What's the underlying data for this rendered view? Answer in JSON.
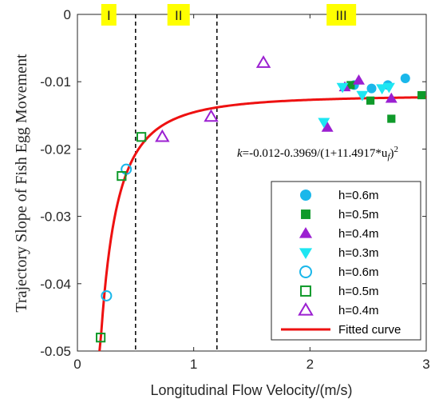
{
  "chart_data": {
    "type": "scatter",
    "xlabel": "Longitudinal Flow Velocity/(m/s)",
    "ylabel": "Trajectory Slope of Fish Egg Movement",
    "xlim": [
      0,
      3
    ],
    "ylim": [
      -0.05,
      0
    ],
    "xticks": [
      "0",
      "1",
      "2",
      "3"
    ],
    "yticks": [
      "0",
      "-0.01",
      "-0.02",
      "-0.03",
      "-0.04",
      "-0.05"
    ],
    "grid": false,
    "legend_position": "bottom-right",
    "regions": [
      {
        "label": "I",
        "x_from": 0,
        "x_to": 0.5
      },
      {
        "label": "II",
        "x_from": 0.5,
        "x_to": 1.2
      },
      {
        "label": "III",
        "x_from": 1.2,
        "x_to": 3
      }
    ],
    "divider_lines_x": [
      0.5,
      1.2
    ],
    "annotation": {
      "text_main": "k=-0.012-0.3969/(1+11.4917*u",
      "text_sub": "f",
      "text_tail": ")",
      "text_sup": "2"
    },
    "series": [
      {
        "name": "h=0.6m",
        "marker": "circle-filled",
        "color": "#1ab7ea",
        "points": [
          [
            2.38,
            -0.0105
          ],
          [
            2.53,
            -0.011
          ],
          [
            2.67,
            -0.0105
          ],
          [
            2.82,
            -0.0095
          ]
        ]
      },
      {
        "name": "h=0.5m",
        "marker": "square-filled",
        "color": "#0f9a2a",
        "points": [
          [
            2.35,
            -0.0105
          ],
          [
            2.52,
            -0.0128
          ],
          [
            2.7,
            -0.0155
          ],
          [
            2.96,
            -0.012
          ]
        ]
      },
      {
        "name": "h=0.4m",
        "marker": "triangle-up-filled",
        "color": "#9b1fd1",
        "points": [
          [
            2.15,
            -0.0168
          ],
          [
            2.3,
            -0.0108
          ],
          [
            2.42,
            -0.0098
          ],
          [
            2.7,
            -0.0125
          ]
        ]
      },
      {
        "name": "h=0.3m",
        "marker": "triangle-down-filled",
        "color": "#1ee6f2",
        "points": [
          [
            2.12,
            -0.016
          ],
          [
            2.28,
            -0.0108
          ],
          [
            2.45,
            -0.012
          ],
          [
            2.62,
            -0.011
          ],
          [
            2.68,
            -0.0108
          ]
        ]
      },
      {
        "name": "h=0.6m",
        "marker": "circle-open",
        "color": "#1ab7ea",
        "points": [
          [
            0.25,
            -0.0418
          ],
          [
            0.42,
            -0.023
          ]
        ]
      },
      {
        "name": "h=0.5m",
        "marker": "square-open",
        "color": "#0f9a2a",
        "points": [
          [
            0.2,
            -0.048
          ],
          [
            0.38,
            -0.024
          ],
          [
            0.55,
            -0.0182
          ]
        ]
      },
      {
        "name": "h=0.4m",
        "marker": "triangle-up-open",
        "color": "#9b1fd1",
        "points": [
          [
            0.73,
            -0.0182
          ],
          [
            1.15,
            -0.0152
          ],
          [
            1.6,
            -0.0072
          ]
        ]
      },
      {
        "name": "Fitted curve",
        "marker": "line",
        "color": "#ee1111",
        "formula": "k=-0.012-0.3969/(1+11.4917*u_f)^2",
        "x_range": [
          0.19,
          3.0
        ]
      }
    ]
  }
}
